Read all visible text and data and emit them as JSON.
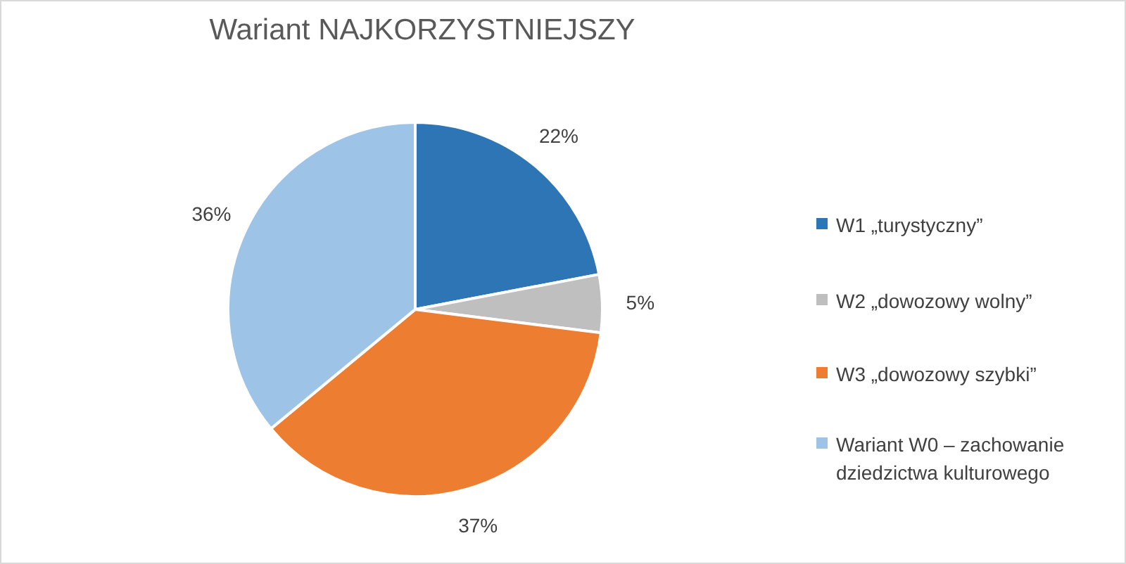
{
  "chart_data": {
    "type": "pie",
    "title": "Wariant NAJKORZYSTNIEJSZY",
    "categories": [
      "W1 „turystyczny”",
      "W2 „dowozowy wolny”",
      "W3 „dowozowy szybki”",
      "Wariant W0 – zachowanie dziedzictwa kulturowego"
    ],
    "values": [
      22,
      5,
      37,
      36
    ],
    "colors": [
      "#2e75b6",
      "#bfbfbf",
      "#ed7d31",
      "#9dc3e6"
    ],
    "value_labels": [
      "22%",
      "5%",
      "37%",
      "36%"
    ],
    "legend": "right"
  }
}
